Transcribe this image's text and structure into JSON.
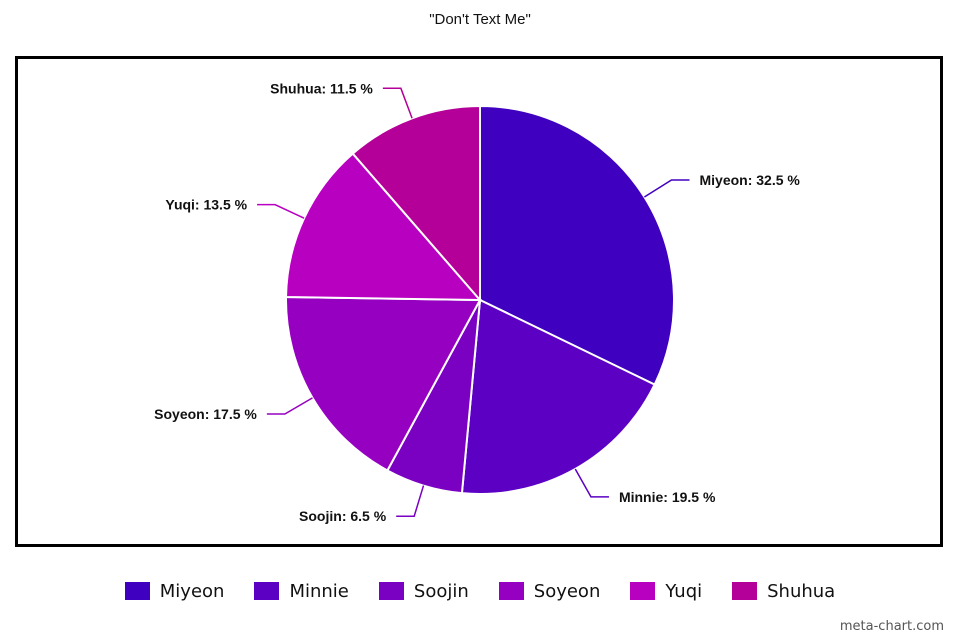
{
  "chart_data": {
    "type": "pie",
    "title": "\"Don't Text Me\"",
    "slices": [
      {
        "name": "Miyeon",
        "value": 32.5,
        "label": "Miyeon: 32.5 %",
        "color": "#4000c0"
      },
      {
        "name": "Minnie",
        "value": 19.5,
        "label": "Minnie: 19.5 %",
        "color": "#5c00c4"
      },
      {
        "name": "Soojin",
        "value": 6.5,
        "label": "Soojin: 6.5 %",
        "color": "#7a00c2"
      },
      {
        "name": "Soyeon",
        "value": 17.5,
        "label": "Soyeon: 17.5 %",
        "color": "#9600c0"
      },
      {
        "name": "Yuqi",
        "value": 13.5,
        "label": "Yuqi: 13.5 %",
        "color": "#b800c0"
      },
      {
        "name": "Shuhua",
        "value": 11.5,
        "label": "Shuhua: 11.5 %",
        "color": "#b40098"
      }
    ],
    "legend_placement": "bottom"
  },
  "watermark": "meta-chart.com"
}
